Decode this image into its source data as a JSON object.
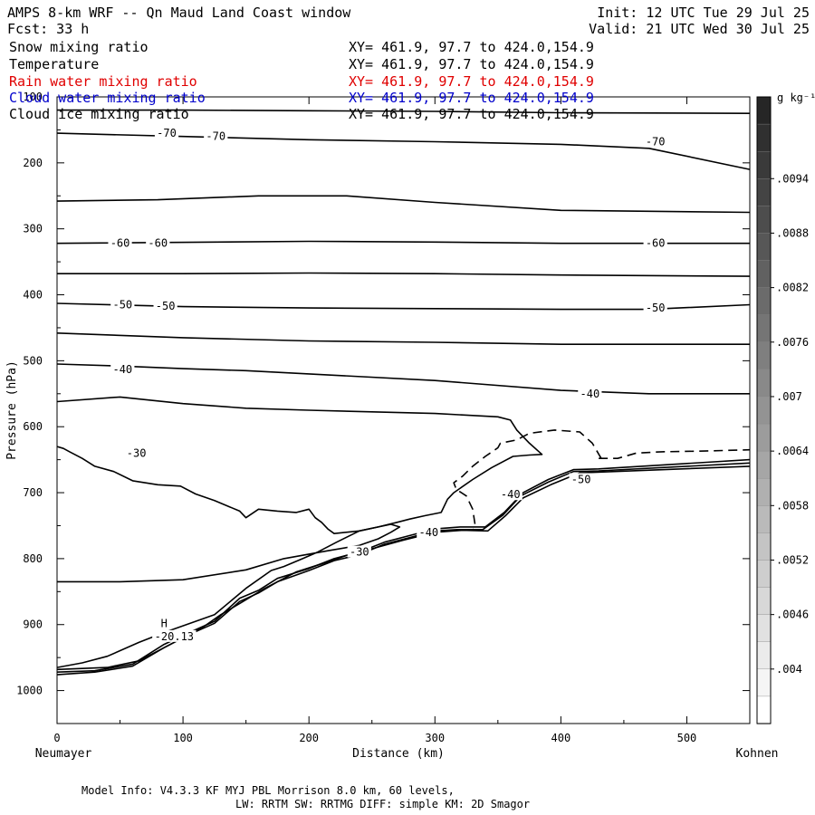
{
  "header": {
    "title": "AMPS 8-km WRF -- Qn Maud Land Coast window",
    "init": "Init: 12 UTC Tue 29 Jul 25",
    "fcst": "Fcst:   33 h",
    "valid": "Valid: 21 UTC Wed 30 Jul 25"
  },
  "fields": [
    {
      "name": "Snow mixing ratio",
      "xy": "XY= 461.9, 97.7 to 424.0,154.9",
      "color": "#000000"
    },
    {
      "name": "Temperature",
      "xy": "XY= 461.9, 97.7 to 424.0,154.9",
      "color": "#000000"
    },
    {
      "name": "Rain water mixing ratio",
      "xy": "XY= 461.9, 97.7 to 424.0,154.9",
      "color": "#e00000"
    },
    {
      "name": "Cloud water mixing ratio",
      "xy": "XY= 461.9, 97.7 to 424.0,154.9",
      "color": "#0000cc"
    },
    {
      "name": "Cloud ice mixing ratio",
      "xy": "XY= 461.9, 97.7 to 424.0,154.9",
      "color": "#000000"
    }
  ],
  "footer": {
    "line1": "Model Info: V4.3.3   KF      MYJ PBL  Morrison             8.0 km,  60 levels,",
    "line2": "LW: RRTM SW: RRTMG   DIFF: simple KM: 2D Smagor"
  },
  "chart_data": {
    "type": "line",
    "title": "Temperature",
    "xlabel": "Distance (km)",
    "ylabel": "Pressure (hPa)",
    "x_start_label": "Neumayer",
    "x_end_label": "Kohnen",
    "xlim": [
      0,
      550
    ],
    "ylim": [
      1050,
      100
    ],
    "xticks": [
      0,
      100,
      200,
      300,
      400,
      500
    ],
    "yticks": [
      100,
      200,
      300,
      400,
      500,
      600,
      700,
      800,
      900,
      1000
    ],
    "colorbar": {
      "unit": "g kg⁻¹",
      "labels": [
        ".0094",
        ".0088",
        ".0082",
        ".0076",
        ".007",
        ".0064",
        ".0058",
        ".0052",
        ".0046",
        ".004"
      ]
    },
    "contour_labels": [
      {
        "text": "-70",
        "x": 87,
        "p": 155
      },
      {
        "text": "-70",
        "x": 126,
        "p": 160
      },
      {
        "text": "-70",
        "x": 475,
        "p": 168
      },
      {
        "text": "-60",
        "x": 50,
        "p": 322
      },
      {
        "text": "-60",
        "x": 80,
        "p": 322
      },
      {
        "text": "-60",
        "x": 475,
        "p": 322
      },
      {
        "text": "-50",
        "x": 52,
        "p": 415
      },
      {
        "text": "-50",
        "x": 86,
        "p": 417
      },
      {
        "text": "-50",
        "x": 475,
        "p": 420
      },
      {
        "text": "-40",
        "x": 52,
        "p": 513
      },
      {
        "text": "-40",
        "x": 423,
        "p": 550
      },
      {
        "text": "-30",
        "x": 63,
        "p": 640
      },
      {
        "text": "-40",
        "x": 360,
        "p": 703
      },
      {
        "text": "-50",
        "x": 416,
        "p": 680
      },
      {
        "text": "-40",
        "x": 295,
        "p": 760
      },
      {
        "text": "-30",
        "x": 240,
        "p": 790
      },
      {
        "text": "H",
        "x": 85,
        "p": 898
      },
      {
        "text": "-20.13",
        "x": 93,
        "p": 918
      }
    ],
    "series": [
      {
        "style": "solid",
        "points": [
          [
            0,
            120
          ],
          [
            100,
            120
          ],
          [
            200,
            121
          ],
          [
            300,
            122
          ],
          [
            400,
            124
          ],
          [
            550,
            125
          ]
        ]
      },
      {
        "style": "solid",
        "points": [
          [
            0,
            155
          ],
          [
            100,
            160
          ],
          [
            200,
            165
          ],
          [
            300,
            168
          ],
          [
            400,
            172
          ],
          [
            470,
            178
          ],
          [
            550,
            210
          ]
        ]
      },
      {
        "style": "solid",
        "points": [
          [
            0,
            258
          ],
          [
            80,
            256
          ],
          [
            160,
            250
          ],
          [
            230,
            250
          ],
          [
            300,
            260
          ],
          [
            400,
            272
          ],
          [
            550,
            275
          ]
        ]
      },
      {
        "style": "solid",
        "points": [
          [
            0,
            322
          ],
          [
            200,
            319
          ],
          [
            300,
            320
          ],
          [
            400,
            322
          ],
          [
            550,
            322
          ]
        ]
      },
      {
        "style": "solid",
        "points": [
          [
            0,
            368
          ],
          [
            100,
            368
          ],
          [
            200,
            367
          ],
          [
            300,
            368
          ],
          [
            400,
            370
          ],
          [
            550,
            372
          ]
        ]
      },
      {
        "style": "solid",
        "points": [
          [
            0,
            413
          ],
          [
            100,
            418
          ],
          [
            200,
            420
          ],
          [
            300,
            421
          ],
          [
            400,
            422
          ],
          [
            470,
            422
          ],
          [
            550,
            415
          ]
        ]
      },
      {
        "style": "solid",
        "points": [
          [
            0,
            458
          ],
          [
            100,
            465
          ],
          [
            200,
            470
          ],
          [
            300,
            472
          ],
          [
            400,
            475
          ],
          [
            550,
            475
          ]
        ]
      },
      {
        "style": "solid",
        "points": [
          [
            0,
            505
          ],
          [
            50,
            508
          ],
          [
            100,
            512
          ],
          [
            150,
            515
          ],
          [
            200,
            520
          ],
          [
            300,
            530
          ],
          [
            400,
            545
          ],
          [
            470,
            550
          ],
          [
            550,
            550
          ]
        ]
      },
      {
        "style": "solid",
        "points": [
          [
            0,
            562
          ],
          [
            50,
            555
          ],
          [
            100,
            565
          ],
          [
            150,
            572
          ],
          [
            200,
            575
          ],
          [
            300,
            580
          ],
          [
            350,
            585
          ],
          [
            360,
            590
          ],
          [
            365,
            605
          ],
          [
            375,
            625
          ],
          [
            385,
            642
          ],
          [
            375,
            643
          ],
          [
            362,
            645
          ],
          [
            345,
            662
          ],
          [
            330,
            680
          ],
          [
            315,
            700
          ],
          [
            310,
            710
          ],
          [
            305,
            730
          ],
          [
            292,
            735
          ],
          [
            280,
            740
          ],
          [
            270,
            745
          ],
          [
            255,
            752
          ],
          [
            240,
            758
          ],
          [
            220,
            762
          ],
          [
            215,
            755
          ],
          [
            210,
            745
          ],
          [
            205,
            738
          ],
          [
            200,
            725
          ],
          [
            190,
            730
          ],
          [
            175,
            728
          ],
          [
            160,
            725
          ],
          [
            150,
            738
          ],
          [
            145,
            728
          ],
          [
            125,
            712
          ],
          [
            110,
            702
          ],
          [
            98,
            690
          ],
          [
            80,
            688
          ],
          [
            60,
            682
          ],
          [
            45,
            668
          ],
          [
            30,
            660
          ],
          [
            20,
            648
          ],
          [
            10,
            638
          ],
          [
            5,
            633
          ],
          [
            0,
            630
          ]
        ]
      },
      {
        "style": "solid",
        "points": [
          [
            0,
            835
          ],
          [
            50,
            835
          ],
          [
            100,
            832
          ],
          [
            150,
            817
          ],
          [
            180,
            800
          ],
          [
            215,
            788
          ],
          [
            240,
            780
          ],
          [
            255,
            770
          ],
          [
            265,
            760
          ],
          [
            272,
            752
          ],
          [
            265,
            748
          ],
          [
            255,
            752
          ],
          [
            240,
            758
          ],
          [
            222,
            775
          ],
          [
            207,
            790
          ],
          [
            195,
            800
          ],
          [
            180,
            812
          ],
          [
            170,
            818
          ],
          [
            150,
            845
          ],
          [
            125,
            885
          ],
          [
            85,
            912
          ],
          [
            65,
            927
          ],
          [
            40,
            948
          ],
          [
            20,
            958
          ],
          [
            0,
            965
          ]
        ]
      },
      {
        "style": "solid",
        "points": [
          [
            0,
            972
          ],
          [
            30,
            970
          ],
          [
            60,
            960
          ],
          [
            85,
            930
          ],
          [
            105,
            912
          ],
          [
            125,
            895
          ],
          [
            145,
            860
          ],
          [
            160,
            848
          ],
          [
            175,
            830
          ],
          [
            200,
            815
          ],
          [
            220,
            800
          ],
          [
            240,
            790
          ],
          [
            260,
            775
          ],
          [
            280,
            765
          ],
          [
            300,
            755
          ],
          [
            320,
            752
          ],
          [
            340,
            752
          ],
          [
            355,
            730
          ],
          [
            370,
            700
          ],
          [
            390,
            680
          ],
          [
            410,
            665
          ],
          [
            430,
            664
          ],
          [
            550,
            650
          ]
        ]
      },
      {
        "style": "solid",
        "points": [
          [
            0,
            976
          ],
          [
            30,
            972
          ],
          [
            60,
            963
          ],
          [
            85,
            935
          ],
          [
            105,
            915
          ],
          [
            125,
            898
          ],
          [
            145,
            865
          ],
          [
            160,
            852
          ],
          [
            175,
            835
          ],
          [
            200,
            818
          ],
          [
            220,
            803
          ],
          [
            240,
            794
          ],
          [
            260,
            778
          ],
          [
            280,
            768
          ],
          [
            300,
            758
          ],
          [
            318,
            756
          ],
          [
            338,
            756
          ],
          [
            354,
            734
          ],
          [
            368,
            705
          ],
          [
            390,
            684
          ],
          [
            410,
            668
          ],
          [
            430,
            667
          ],
          [
            550,
            655
          ]
        ]
      },
      {
        "style": "solid",
        "points": [
          [
            0,
            968
          ],
          [
            40,
            965
          ],
          [
            65,
            955
          ],
          [
            95,
            925
          ],
          [
            115,
            905
          ],
          [
            130,
            885
          ],
          [
            145,
            868
          ],
          [
            165,
            845
          ],
          [
            190,
            820
          ],
          [
            210,
            808
          ],
          [
            230,
            795
          ],
          [
            250,
            785
          ],
          [
            275,
            772
          ],
          [
            300,
            760
          ],
          [
            322,
            757
          ],
          [
            342,
            758
          ],
          [
            356,
            735
          ],
          [
            370,
            708
          ],
          [
            392,
            688
          ],
          [
            415,
            670
          ],
          [
            550,
            660
          ]
        ]
      },
      {
        "style": "dashed",
        "points": [
          [
            432,
            648
          ],
          [
            425,
            625
          ],
          [
            415,
            608
          ],
          [
            395,
            605
          ],
          [
            375,
            610
          ],
          [
            365,
            620
          ],
          [
            352,
            625
          ],
          [
            350,
            632
          ],
          [
            340,
            645
          ],
          [
            330,
            660
          ],
          [
            322,
            675
          ],
          [
            315,
            685
          ],
          [
            317,
            695
          ],
          [
            325,
            705
          ],
          [
            330,
            725
          ],
          [
            332,
            750
          ],
          [
            330,
            757
          ]
        ]
      },
      {
        "style": "dashed",
        "points": [
          [
            430,
            648
          ],
          [
            445,
            648
          ],
          [
            460,
            640
          ],
          [
            480,
            638
          ],
          [
            510,
            637
          ],
          [
            550,
            635
          ]
        ]
      }
    ]
  }
}
